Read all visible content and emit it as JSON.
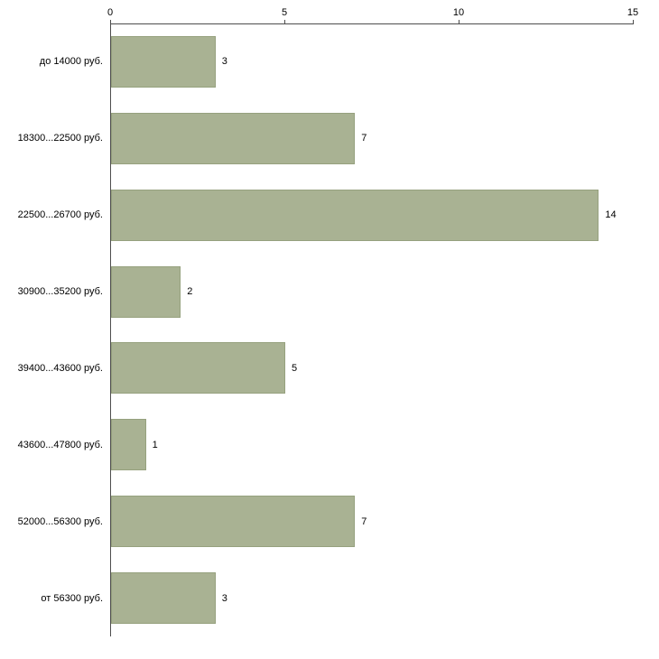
{
  "chart_data": {
    "type": "bar",
    "orientation": "horizontal",
    "title": "",
    "xlabel": "",
    "ylabel": "",
    "categories": [
      "до 14000 руб.",
      "18300...22500 руб.",
      "22500...26700 руб.",
      "30900...35200 руб.",
      "39400...43600 руб.",
      "43600...47800 руб.",
      "52000...56300 руб.",
      "от 56300 руб."
    ],
    "values": [
      3,
      7,
      14,
      2,
      5,
      1,
      7,
      3
    ],
    "value_labels": [
      "3",
      "7",
      "14",
      "2",
      "5",
      "1",
      "7",
      "3"
    ],
    "xlim": [
      0,
      15
    ],
    "xticks": [
      "0",
      "5",
      "10",
      "15"
    ],
    "xtick_values": [
      0,
      5,
      10,
      15
    ],
    "grid": false,
    "legend": "none",
    "bar_color": "#a9b293",
    "bar_border_color": "#96a17e",
    "axis_color": "#4d4d4d",
    "text_color": "#000000",
    "background_color": "#ffffff"
  }
}
